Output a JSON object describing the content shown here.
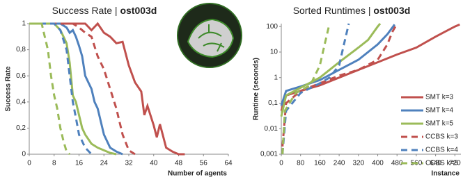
{
  "chart_data": [
    {
      "type": "line",
      "title_parts": [
        "Success Rate | ",
        "ost003d"
      ],
      "xlabel": "Number of agents",
      "ylabel": "Success Rate",
      "xlim": [
        0,
        64
      ],
      "xticks": [
        0,
        8,
        16,
        24,
        32,
        40,
        48,
        56,
        64
      ],
      "ylim": [
        0,
        1
      ],
      "yticks": [
        {
          "value": 0,
          "label": "0"
        },
        {
          "value": 0.2,
          "label": "0,2"
        },
        {
          "value": 0.4,
          "label": "0,4"
        },
        {
          "value": 0.6,
          "label": "0,6"
        },
        {
          "value": 0.8,
          "label": "0,8"
        },
        {
          "value": 1,
          "label": "1"
        }
      ],
      "grid": false,
      "series": [
        {
          "color": "#c0504d",
          "dashed": false,
          "x": [
            0,
            18,
            20,
            22,
            24,
            26,
            28,
            30,
            32,
            34,
            36,
            37,
            38,
            40,
            41,
            42,
            43,
            44,
            46,
            48,
            50
          ],
          "values": [
            1,
            1,
            0.95,
            1,
            0.93,
            0.9,
            0.85,
            0.86,
            0.68,
            0.55,
            0.48,
            0.3,
            0.37,
            0.22,
            0.13,
            0.23,
            0.14,
            0.05,
            0.02,
            0,
            0
          ]
        },
        {
          "color": "#4f81bd",
          "dashed": false,
          "x": [
            0,
            10,
            12,
            13,
            14,
            15,
            16,
            17,
            18,
            19,
            20,
            21,
            22,
            24,
            26,
            28,
            30
          ],
          "values": [
            1,
            1,
            0.97,
            0.93,
            0.95,
            0.9,
            0.83,
            0.75,
            0.6,
            0.55,
            0.5,
            0.4,
            0.35,
            0.15,
            0.05,
            0.02,
            0
          ]
        },
        {
          "color": "#9bbb59",
          "dashed": false,
          "x": [
            0,
            8,
            10,
            11,
            12,
            13,
            14,
            15,
            16,
            17,
            18,
            20,
            22,
            24,
            26,
            28
          ],
          "values": [
            1,
            1,
            0.95,
            0.9,
            0.85,
            0.7,
            0.45,
            0.4,
            0.3,
            0.2,
            0.15,
            0.08,
            0.05,
            0.03,
            0.01,
            0
          ]
        },
        {
          "color": "#c0504d",
          "dashed": true,
          "x": [
            0,
            14,
            16,
            18,
            20,
            22,
            24,
            26,
            28,
            30,
            32,
            34
          ],
          "values": [
            1,
            1,
            0.97,
            0.93,
            0.9,
            0.75,
            0.65,
            0.5,
            0.35,
            0.15,
            0.03,
            0
          ]
        },
        {
          "color": "#4f81bd",
          "dashed": true,
          "x": [
            0,
            8,
            10,
            12,
            13,
            14,
            15,
            16,
            18,
            20
          ],
          "values": [
            1,
            1,
            0.95,
            0.8,
            0.6,
            0.4,
            0.28,
            0.15,
            0.05,
            0
          ]
        },
        {
          "color": "#9bbb59",
          "dashed": true,
          "x": [
            0,
            4,
            5,
            6,
            7,
            8,
            9,
            10,
            11,
            12,
            13
          ],
          "values": [
            1,
            1,
            0.9,
            0.8,
            0.6,
            0.45,
            0.35,
            0.2,
            0.1,
            0.02,
            0
          ]
        }
      ]
    },
    {
      "type": "line",
      "title_parts": [
        "Sorted Runtimes | ",
        "ost003d"
      ],
      "xlabel": "Instance",
      "ylabel": "Runtime (seconds)",
      "xlim": [
        0,
        745
      ],
      "xticks": [
        0,
        80,
        160,
        240,
        320,
        400,
        480,
        560,
        640,
        720
      ],
      "ylim": [
        0.001,
        130
      ],
      "log_y": true,
      "yticks": [
        {
          "value": 0.001,
          "label": "0,001"
        },
        {
          "value": 0.01,
          "label": "0,01"
        },
        {
          "value": 0.1,
          "label": "0,1"
        },
        1,
        10,
        100
      ],
      "grid": false,
      "legend": "right",
      "series": [
        {
          "name": "SMT k=3",
          "color": "#c0504d",
          "dashed": false,
          "x": [
            0,
            20,
            80,
            160,
            240,
            320,
            400,
            480,
            560,
            640,
            720,
            740
          ],
          "values": [
            0.05,
            0.2,
            0.3,
            0.5,
            1,
            2,
            4,
            8,
            15,
            40,
            100,
            120
          ]
        },
        {
          "name": "SMT k=4",
          "color": "#4f81bd",
          "dashed": false,
          "x": [
            0,
            20,
            80,
            160,
            240,
            320,
            400,
            440,
            470
          ],
          "values": [
            0.08,
            0.3,
            0.45,
            0.8,
            2,
            5,
            20,
            50,
            120
          ]
        },
        {
          "name": "SMT k=5",
          "color": "#9bbb59",
          "dashed": false,
          "x": [
            0,
            20,
            80,
            160,
            240,
            320,
            360,
            400,
            410
          ],
          "values": [
            0.03,
            0.2,
            0.4,
            1,
            4,
            15,
            30,
            100,
            130
          ]
        },
        {
          "name": "CCBS k=3",
          "color": "#c0504d",
          "dashed": true,
          "x": [
            5,
            20,
            80,
            160,
            240,
            320,
            400,
            440,
            460,
            480
          ],
          "values": [
            0.002,
            0.1,
            0.3,
            0.6,
            1.2,
            2,
            5,
            20,
            60,
            130
          ]
        },
        {
          "name": "CCBS k=4",
          "color": "#4f81bd",
          "dashed": true,
          "x": [
            5,
            20,
            80,
            160,
            200,
            240,
            260,
            280
          ],
          "values": [
            0.001,
            0.05,
            0.25,
            0.6,
            1,
            3,
            20,
            130
          ]
        },
        {
          "name": "CCBS k=5",
          "color": "#9bbb59",
          "dashed": true,
          "x": [
            5,
            15,
            60,
            120,
            160,
            180,
            200
          ],
          "values": [
            0.001,
            0.05,
            0.25,
            0.5,
            3,
            20,
            130
          ]
        }
      ]
    }
  ]
}
